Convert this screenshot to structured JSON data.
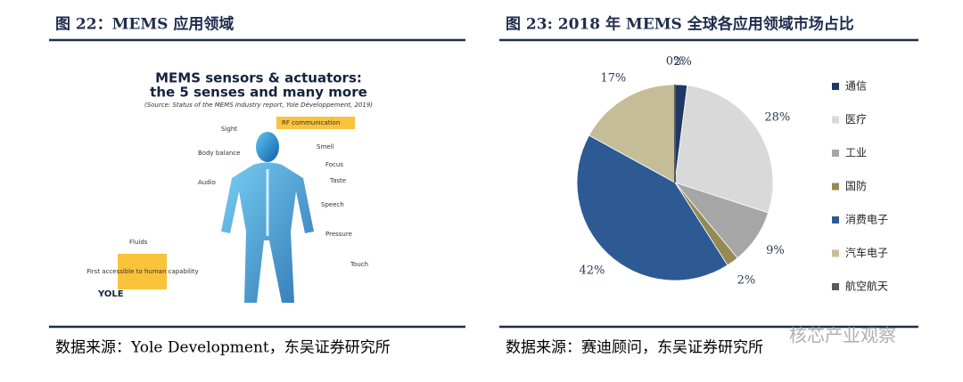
{
  "figure_left": {
    "title": "图 22：MEMS 应用领域",
    "image": {
      "heading": [
        "MEMS sensors & actuators:",
        "the 5 senses and many more"
      ],
      "source": "(Source: Status of the MEMS Industry report, Yole Développement, 2019)",
      "labels": [
        "Sight",
        "Body balance",
        "Audio",
        "Fluids",
        "RF communication",
        "Smell",
        "Focus",
        "Taste",
        "Speech",
        "Pressure",
        "Touch"
      ],
      "note": "First accessible to human capability",
      "logo": "YOLE"
    },
    "source": "数据来源：Yole Development，东吴证券研究所"
  },
  "chart_data": {
    "type": "pie",
    "title": "图 23:   2018 年 MEMS 全球各应用领域市场占比",
    "categories": [
      "通信",
      "医疗",
      "工业",
      "国防",
      "消费电子",
      "汽车电子",
      "航空航天"
    ],
    "values": [
      2,
      28,
      9,
      2,
      42,
      17,
      0
    ],
    "value_labels": [
      "2%",
      "28%",
      "9%",
      "2%",
      "42%",
      "17%",
      "0%"
    ],
    "colors": [
      "#1f3864",
      "#d9d9d9",
      "#a6a6a6",
      "#948a54",
      "#2e5a94",
      "#c4bd97",
      "#595959"
    ],
    "legend": "right",
    "source": "数据来源：赛迪顾问，东吴证券研究所"
  },
  "watermark": "核芯产业观察"
}
